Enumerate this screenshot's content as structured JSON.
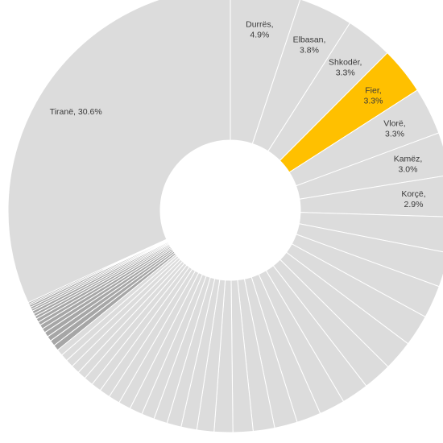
{
  "chart_data": {
    "type": "pie",
    "subtype": "donut",
    "title": "",
    "legend": "none",
    "colors": {
      "default": "#dcdcdc",
      "highlight": "#ffc000",
      "small_slices": "#a6a6a6",
      "border": "#ffffff"
    },
    "labeled_slices": [
      {
        "name": "Tiranë",
        "value": 30.6,
        "label": "Tiranë, 30.6%",
        "color": "#dcdcdc"
      },
      {
        "name": "Durrës",
        "value": 4.9,
        "label": "Durrës,\n4.9%",
        "color": "#dcdcdc"
      },
      {
        "name": "Elbasan",
        "value": 3.8,
        "label": "Elbasan,\n3.8%",
        "color": "#dcdcdc"
      },
      {
        "name": "Shkodër",
        "value": 3.3,
        "label": "Shkodër,\n3.3%",
        "color": "#dcdcdc"
      },
      {
        "name": "Fier",
        "value": 3.3,
        "label": "Fier,\n3.3%",
        "color": "#ffc000"
      },
      {
        "name": "Vlorë",
        "value": 3.3,
        "label": "Vlorë,\n3.3%",
        "color": "#dcdcdc"
      },
      {
        "name": "Kamëz",
        "value": 3.0,
        "label": "Kamëz,\n3.0%",
        "color": "#dcdcdc"
      },
      {
        "name": "Korçë",
        "value": 2.9,
        "label": "Korçë,\n2.9%",
        "color": "#dcdcdc"
      }
    ],
    "unlabeled_slices": [
      {
        "value": 2.5,
        "color": "#dcdcdc"
      },
      {
        "value": 2.4,
        "color": "#dcdcdc"
      },
      {
        "value": 2.3,
        "color": "#dcdcdc"
      },
      {
        "value": 2.2,
        "color": "#dcdcdc"
      },
      {
        "value": 2.1,
        "color": "#dcdcdc"
      },
      {
        "value": 2.0,
        "color": "#dcdcdc"
      },
      {
        "value": 1.9,
        "color": "#dcdcdc"
      },
      {
        "value": 1.8,
        "color": "#dcdcdc"
      },
      {
        "value": 1.7,
        "color": "#dcdcdc"
      },
      {
        "value": 1.6,
        "color": "#dcdcdc"
      },
      {
        "value": 1.5,
        "color": "#dcdcdc"
      },
      {
        "value": 1.4,
        "color": "#dcdcdc"
      },
      {
        "value": 1.3,
        "color": "#dcdcdc"
      },
      {
        "value": 1.2,
        "color": "#dcdcdc"
      },
      {
        "value": 1.1,
        "color": "#dcdcdc"
      },
      {
        "value": 1.0,
        "color": "#dcdcdc"
      },
      {
        "value": 0.95,
        "color": "#dcdcdc"
      },
      {
        "value": 0.9,
        "color": "#dcdcdc"
      },
      {
        "value": 0.9,
        "color": "#dcdcdc"
      },
      {
        "value": 0.85,
        "color": "#dcdcdc"
      },
      {
        "value": 0.8,
        "color": "#dcdcdc"
      },
      {
        "value": 0.75,
        "color": "#dcdcdc"
      },
      {
        "value": 0.7,
        "color": "#dcdcdc"
      },
      {
        "value": 0.65,
        "color": "#dcdcdc"
      },
      {
        "value": 0.6,
        "color": "#dcdcdc"
      },
      {
        "value": 0.6,
        "color": "#dcdcdc"
      },
      {
        "value": 0.55,
        "color": "#dcdcdc"
      },
      {
        "value": 0.5,
        "color": "#dcdcdc"
      },
      {
        "value": 0.45,
        "color": "#dcdcdc"
      },
      {
        "value": 0.4,
        "color": "#a6a6a6"
      },
      {
        "value": 0.4,
        "color": "#a6a6a6"
      },
      {
        "value": 0.35,
        "color": "#a6a6a6"
      },
      {
        "value": 0.35,
        "color": "#a6a6a6"
      },
      {
        "value": 0.3,
        "color": "#a6a6a6"
      },
      {
        "value": 0.3,
        "color": "#a6a6a6"
      },
      {
        "value": 0.25,
        "color": "#a6a6a6"
      },
      {
        "value": 0.25,
        "color": "#a6a6a6"
      },
      {
        "value": 0.2,
        "color": "#a6a6a6"
      },
      {
        "value": 0.2,
        "color": "#a6a6a6"
      },
      {
        "value": 0.2,
        "color": "#a6a6a6"
      },
      {
        "value": 0.15,
        "color": "#a6a6a6"
      },
      {
        "value": 0.15,
        "color": "#a6a6a6"
      },
      {
        "value": 0.15,
        "color": "#a6a6a6"
      },
      {
        "value": 0.1,
        "color": "#a6a6a6"
      },
      {
        "value": 0.1,
        "color": "#a6a6a6"
      }
    ]
  }
}
